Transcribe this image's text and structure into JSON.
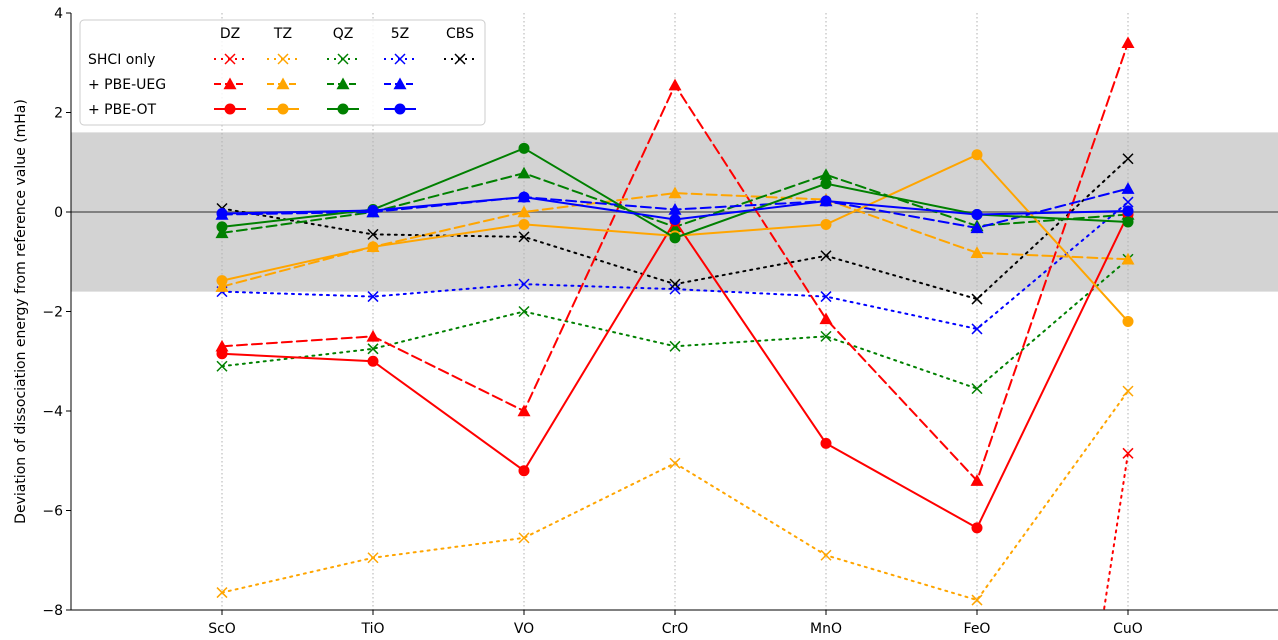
{
  "chart_data": {
    "type": "line",
    "ylabel": "Deviation of dissociation energy from reference value (mHa)",
    "xlabel": "",
    "categories": [
      "ScO",
      "TiO",
      "VO",
      "CrO",
      "MnO",
      "FeO",
      "CuO"
    ],
    "ylim": [
      -8,
      4
    ],
    "yticks": [
      -8,
      -6,
      -4,
      -2,
      0,
      2,
      4
    ],
    "ytick_labels": [
      "−8",
      "−6",
      "−4",
      "−2",
      "0",
      "2",
      "4"
    ],
    "shaded_band": [
      -1.6,
      1.6
    ],
    "reference_line": 0,
    "grid": "vertical dotted at categories",
    "legend": {
      "placement": "top-left",
      "column_headers": [
        "DZ",
        "TZ",
        "QZ",
        "5Z",
        "CBS"
      ],
      "row_labels": [
        "SHCI only",
        "+ PBE-UEG",
        "+ PBE-OT"
      ]
    },
    "colors": {
      "DZ": "#ff0000",
      "TZ": "#ffa500",
      "QZ": "#008000",
      "5Z": "#0000ff",
      "CBS": "#000000",
      "band": "#d3d3d3",
      "zero_line": "#808080"
    },
    "series": [
      {
        "name": "DZ",
        "method": "SHCI only",
        "marker": "x",
        "line": "dotted",
        "color": "#ff0000",
        "values": [
          null,
          null,
          null,
          null,
          null,
          null,
          -4.85
        ]
      },
      {
        "name": "TZ",
        "method": "SHCI only",
        "marker": "x",
        "line": "dotted",
        "color": "#ffa500",
        "values": [
          -7.65,
          -6.95,
          -6.55,
          -5.05,
          -6.9,
          -7.8,
          -3.6
        ]
      },
      {
        "name": "QZ",
        "method": "SHCI only",
        "marker": "x",
        "line": "dotted",
        "color": "#008000",
        "values": [
          -3.1,
          -2.75,
          -2.0,
          -2.7,
          -2.5,
          -3.55,
          -0.95
        ]
      },
      {
        "name": "5Z",
        "method": "SHCI only",
        "marker": "x",
        "line": "dotted",
        "color": "#0000ff",
        "values": [
          -1.6,
          -1.7,
          -1.45,
          -1.55,
          -1.7,
          -2.35,
          0.2
        ]
      },
      {
        "name": "CBS",
        "method": "SHCI only",
        "marker": "x",
        "line": "dotted",
        "color": "#000000",
        "values": [
          0.07,
          -0.45,
          -0.5,
          -1.45,
          -0.88,
          -1.75,
          1.07
        ]
      },
      {
        "name": "DZ",
        "method": "+ PBE-UEG",
        "marker": "triangle",
        "line": "dashed",
        "color": "#ff0000",
        "values": [
          -2.7,
          -2.5,
          -4.0,
          2.55,
          -2.15,
          -5.4,
          3.4
        ]
      },
      {
        "name": "TZ",
        "method": "+ PBE-UEG",
        "marker": "triangle",
        "line": "dashed",
        "color": "#ffa500",
        "values": [
          -1.5,
          -0.7,
          0.0,
          0.38,
          0.25,
          -0.82,
          -0.95
        ]
      },
      {
        "name": "QZ",
        "method": "+ PBE-UEG",
        "marker": "triangle",
        "line": "dashed",
        "color": "#008000",
        "values": [
          -0.42,
          0.0,
          0.78,
          -0.3,
          0.75,
          -0.28,
          -0.05
        ]
      },
      {
        "name": "5Z",
        "method": "+ PBE-UEG",
        "marker": "triangle",
        "line": "dashed",
        "color": "#0000ff",
        "values": [
          -0.05,
          0.0,
          0.3,
          0.05,
          0.22,
          -0.32,
          0.47
        ]
      },
      {
        "name": "DZ",
        "method": "+ PBE-OT",
        "marker": "circle",
        "line": "solid",
        "color": "#ff0000",
        "values": [
          -2.85,
          -3.0,
          -5.2,
          -0.18,
          -4.65,
          -6.35,
          -0.05
        ]
      },
      {
        "name": "TZ",
        "method": "+ PBE-OT",
        "marker": "circle",
        "line": "solid",
        "color": "#ffa500",
        "values": [
          -1.38,
          -0.7,
          -0.25,
          -0.48,
          -0.25,
          1.15,
          -2.2
        ]
      },
      {
        "name": "QZ",
        "method": "+ PBE-OT",
        "marker": "circle",
        "line": "solid",
        "color": "#008000",
        "values": [
          -0.3,
          0.05,
          1.28,
          -0.52,
          0.57,
          -0.05,
          -0.2
        ]
      },
      {
        "name": "5Z",
        "method": "+ PBE-OT",
        "marker": "circle",
        "line": "solid",
        "color": "#0000ff",
        "values": [
          -0.03,
          0.03,
          0.3,
          -0.15,
          0.22,
          -0.05,
          0.02
        ]
      }
    ]
  }
}
